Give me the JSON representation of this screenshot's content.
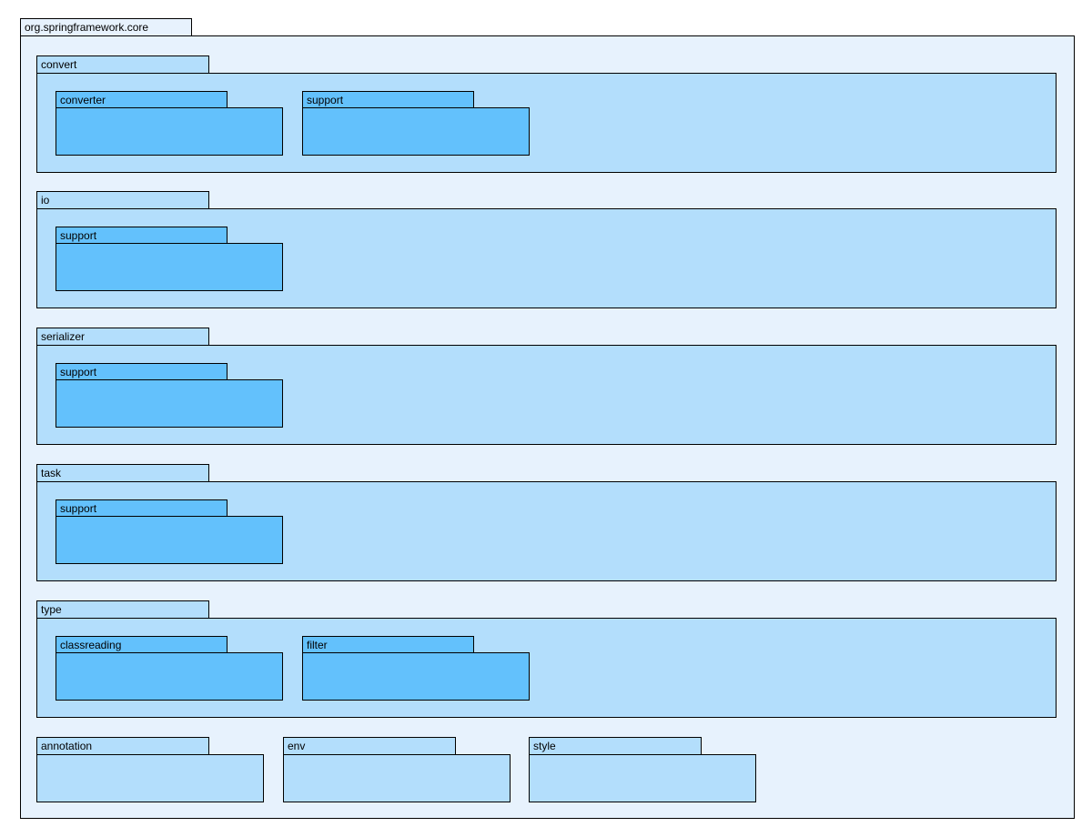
{
  "diagram": {
    "root": {
      "label": "org.springframework.core"
    },
    "sections": [
      {
        "label": "convert",
        "children": [
          {
            "label": "converter"
          },
          {
            "label": "support"
          }
        ]
      },
      {
        "label": "io",
        "children": [
          {
            "label": "support"
          }
        ]
      },
      {
        "label": "serializer",
        "children": [
          {
            "label": "support"
          }
        ]
      },
      {
        "label": "task",
        "children": [
          {
            "label": "support"
          }
        ]
      },
      {
        "label": "type",
        "children": [
          {
            "label": "classreading"
          },
          {
            "label": "filter"
          }
        ]
      }
    ],
    "bottom": [
      {
        "label": "annotation"
      },
      {
        "label": "env"
      },
      {
        "label": "style"
      }
    ],
    "colors": {
      "outer": "#e7f2fd",
      "mid": "#b3defc",
      "inner": "#63c1fc",
      "border": "#000000"
    }
  }
}
